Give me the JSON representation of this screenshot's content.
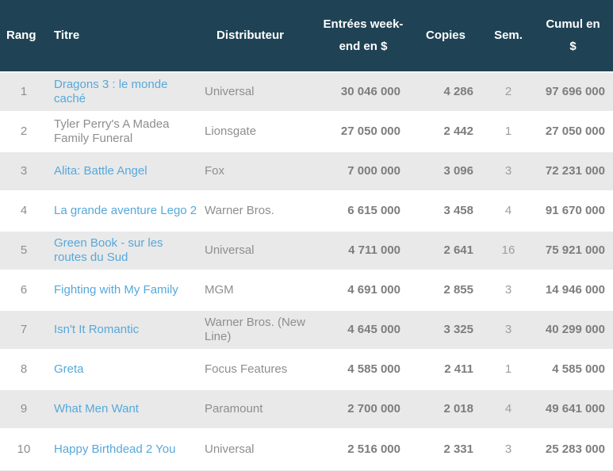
{
  "table": {
    "headers": {
      "rank": "Rang",
      "title": "Titre",
      "distributor": "Distributeur",
      "weekend": "Entrées week-end en $",
      "copies": "Copies",
      "weeks": "Sem.",
      "cumul": "Cumul en $"
    },
    "rows": [
      {
        "rank": "1",
        "title": "Dragons 3 : le monde caché",
        "is_link": true,
        "distributor": "Universal",
        "weekend": "30 046 000",
        "copies": "4 286",
        "weeks": "2",
        "cumul": "97 696 000"
      },
      {
        "rank": "2",
        "title": "Tyler Perry's A Madea Family Funeral",
        "is_link": false,
        "distributor": "Lionsgate",
        "weekend": "27 050 000",
        "copies": "2 442",
        "weeks": "1",
        "cumul": "27 050 000"
      },
      {
        "rank": "3",
        "title": "Alita: Battle Angel",
        "is_link": true,
        "distributor": "Fox",
        "weekend": "7 000 000",
        "copies": "3 096",
        "weeks": "3",
        "cumul": "72 231 000"
      },
      {
        "rank": "4",
        "title": "La grande aventure Lego 2",
        "is_link": true,
        "distributor": "Warner Bros.",
        "weekend": "6 615 000",
        "copies": "3 458",
        "weeks": "4",
        "cumul": "91 670 000"
      },
      {
        "rank": "5",
        "title": "Green Book - sur les routes du Sud",
        "is_link": true,
        "distributor": "Universal",
        "weekend": "4 711 000",
        "copies": "2 641",
        "weeks": "16",
        "cumul": "75 921 000"
      },
      {
        "rank": "6",
        "title": "Fighting with My Family",
        "is_link": true,
        "distributor": "MGM",
        "weekend": "4 691 000",
        "copies": "2 855",
        "weeks": "3",
        "cumul": "14 946 000"
      },
      {
        "rank": "7",
        "title": "Isn't It Romantic",
        "is_link": true,
        "distributor": "Warner Bros. (New Line)",
        "weekend": "4 645 000",
        "copies": "3 325",
        "weeks": "3",
        "cumul": "40 299 000"
      },
      {
        "rank": "8",
        "title": "Greta",
        "is_link": true,
        "distributor": "Focus Features",
        "weekend": "4 585 000",
        "copies": "2 411",
        "weeks": "1",
        "cumul": "4 585 000"
      },
      {
        "rank": "9",
        "title": "What Men Want",
        "is_link": true,
        "distributor": "Paramount",
        "weekend": "2 700 000",
        "copies": "2 018",
        "weeks": "4",
        "cumul": "49 641 000"
      },
      {
        "rank": "10",
        "title": "Happy Birthdead 2 You",
        "is_link": true,
        "distributor": "Universal",
        "weekend": "2 516 000",
        "copies": "2 331",
        "weeks": "3",
        "cumul": "25 283 000"
      }
    ]
  },
  "colors": {
    "header_background": "#1f4355",
    "header_text": "#ffffff",
    "stripe_row": "#e9e9e9",
    "white_row": "#ffffff",
    "link_blue": "#57a8da",
    "text_gray": "#8e8e8e",
    "number_gray": "#7d7d7d"
  }
}
